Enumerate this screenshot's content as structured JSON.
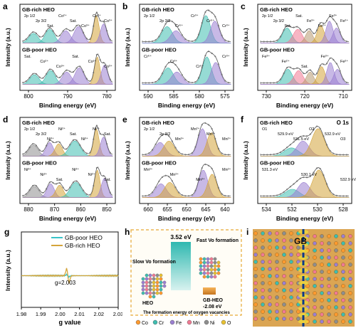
{
  "colors": {
    "teal": "#3fbdb0",
    "gold": "#d4a43a",
    "purple": "#9b7fd1",
    "pink": "#f07a93",
    "tan": "#b89a72",
    "gray": "#8e8e8e",
    "cyan": "#39c4c8"
  },
  "panels": {
    "a": {
      "letter": "a",
      "top": "GB-rich HEO",
      "bottom": "GB-poor HEO",
      "xlabel": "Binding energy (eV)",
      "ylabel": "Intensity (a.u.)",
      "ticks": [
        "800",
        "790",
        "780"
      ],
      "top_labels": [
        "2p 1/2",
        "2p 3/2",
        "Sat.",
        "Co²⁺",
        "Sat.",
        "Co³⁺",
        "Co²⁺",
        "Co³⁺"
      ],
      "bot_labels": [
        "Sat.",
        "Co²⁺",
        "Co³⁺",
        "Sat.",
        "Co²⁺",
        "Co³⁺"
      ]
    },
    "b": {
      "letter": "b",
      "top": "GB-rich HEO",
      "bottom": "GB-poor HEO",
      "xlabel": "Binding energy (eV)",
      "ylabel": "Intensity (a.u.)",
      "ticks": [
        "590",
        "585",
        "580",
        "575"
      ],
      "top_labels": [
        "2p 1/2",
        "2p 3/2",
        "Cr⁶⁺",
        "Cr³⁺",
        "Cr⁶⁺",
        "Cr³⁺"
      ],
      "bot_labels": [
        "Cr⁶⁺",
        "Cr³⁺",
        "Cr⁶⁺",
        "Cr³⁺"
      ]
    },
    "c": {
      "letter": "c",
      "top": "GB-rich HEO",
      "bottom": "GB-poor HEO",
      "xlabel": "Binding energy (eV)",
      "ylabel": "Intensity (a.u.)",
      "ticks": [
        "730",
        "720",
        "710"
      ],
      "top_labels": [
        "2p 1/2",
        "2p 3/2",
        "Sat.",
        "Sat.",
        "Fe³⁺",
        "Fe²⁺",
        "Fe³⁺",
        "Fe²⁺"
      ],
      "bot_labels": [
        "Fe³⁺",
        "Fe²⁺",
        "Sat.",
        "Fe³⁺",
        "Fe²⁺"
      ]
    },
    "d": {
      "letter": "d",
      "top": "GB-rich HEO",
      "bottom": "GB-poor HEO",
      "xlabel": "Binding energy (eV)",
      "ylabel": "Intensity (a.u.)",
      "ticks": [
        "880",
        "870",
        "860",
        "850"
      ],
      "top_labels": [
        "2p 1/2",
        "2p 3/2",
        "Ni³⁺",
        "Ni²⁺",
        "Sat.",
        "Ni³⁺",
        "Ni²⁺",
        "Sat."
      ],
      "bot_labels": [
        "Ni³⁺",
        "Ni²⁺",
        "Sat.",
        "Ni³⁺",
        "Ni²⁺",
        "Sat."
      ]
    },
    "e": {
      "letter": "e",
      "top": "GB-rich HEO",
      "bottom": "GB-poor HEO",
      "xlabel": "Binding energy (eV)",
      "ylabel": "Intensity (a.u.)",
      "ticks": [
        "660",
        "655",
        "650",
        "645",
        "640"
      ],
      "top_labels": [
        "2p 1/2",
        "2p 3/2",
        "Mn³⁺",
        "Mn²⁺",
        "Mn³⁺",
        "Mn²⁺"
      ],
      "bot_labels": [
        "Mn³⁺",
        "Mn²⁺",
        "Mn³⁺",
        "Mn²⁺"
      ]
    },
    "f": {
      "letter": "f",
      "top": "GB-rich HEO",
      "bottom": "GB-poor HEO",
      "title": "O 1s",
      "xlabel": "Binding energy (eV)",
      "ylabel": "Intensity (a.u.)",
      "ticks": [
        "534",
        "532",
        "530",
        "528"
      ],
      "top_labels": [
        "O1",
        "529.9 eV",
        "531.5 eV",
        "O2",
        "532.9 eV",
        "O3"
      ],
      "bot_labels": [
        "531.3 eV",
        "530.1 eV",
        "532.9 eV"
      ]
    },
    "g": {
      "letter": "g",
      "xlabel": "g value",
      "ylabel": "Intensity (a.u.)",
      "ticks": [
        "1.98",
        "1.99",
        "2.00",
        "2.01",
        "2.02",
        "2.03"
      ],
      "legend": [
        "GB-poor HEO",
        "GB-rich HEO"
      ],
      "annotation": "g=2.003"
    },
    "h": {
      "letter": "h",
      "bar_value": "3.52 eV",
      "slow": "Slow Vo formation",
      "fast": "Fast Vo formation",
      "hea_label": "HEO",
      "gb_label": "GB-HEO",
      "gb_value": "-2.08 eV",
      "caption": "The formation energy of oxygen vacancies",
      "legend": [
        {
          "el": "Co",
          "color": "#ff9a2f"
        },
        {
          "el": "Cr",
          "color": "#3fbdb0"
        },
        {
          "el": "Fe",
          "color": "#9b7fd1"
        },
        {
          "el": "Mn",
          "color": "#f07a93"
        },
        {
          "el": "Ni",
          "color": "#8e8e8e"
        },
        {
          "el": "O",
          "color": "#e8c130"
        }
      ]
    },
    "i": {
      "letter": "i",
      "label": "GB"
    }
  }
}
